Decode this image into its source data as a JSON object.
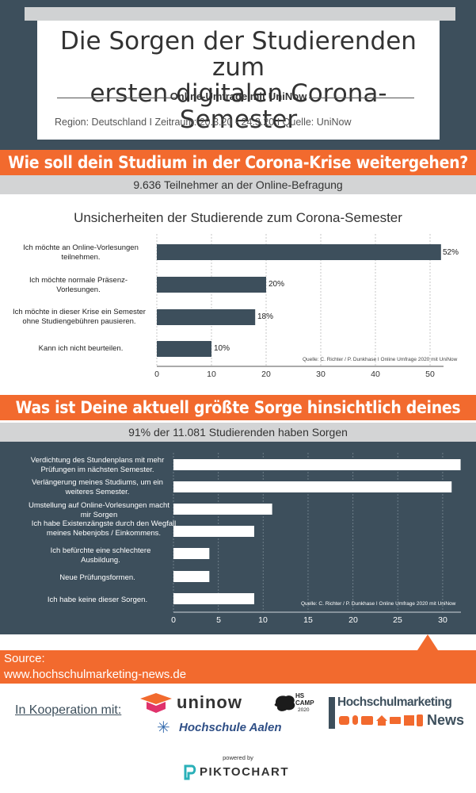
{
  "header": {
    "title_line1": "Die Sorgen der Studierenden zum",
    "title_line2": "ersten digitalen Corona-Semester",
    "subtitle": "Online-Umfrage mit UniNow",
    "meta": "Region: Deutschland I  Zeitraum: 20.3.20 - 24.3.20  I  Quelle: UniNow"
  },
  "section1": {
    "banner": "Wie soll dein Studium in der Corona-Krise weitergehen?",
    "participants": "9.636 Teilnehmer an der Online-Befragung"
  },
  "section2": {
    "banner": "Was ist Deine aktuell größte Sorge hinsichtlich deines Studiums?",
    "participants": "91% der 11.081 Studierenden haben Sorgen"
  },
  "chart_data": [
    {
      "type": "bar",
      "orientation": "horizontal",
      "title": "Unsicherheiten der Studierende zum Corona-Semester",
      "categories": [
        "Ich möchte an Online-Vorlesungen teilnehmen.",
        "Ich möchte normale Präsenz-Vorlesungen.",
        "Ich möchte in dieser Krise ein Semester ohne Studiengebühren pausieren.",
        "Kann ich nicht beurteilen."
      ],
      "values": [
        52,
        20,
        18,
        10
      ],
      "data_labels": [
        "52%",
        "20%",
        "18%",
        "10%"
      ],
      "xlim": [
        0,
        55
      ],
      "xticks": [
        0,
        10,
        20,
        30,
        40,
        50
      ],
      "grid": true,
      "credit": "Quelle: C. Richter / P. Dunkhase I Online Umfrage 2020 mit UniNow",
      "colors": {
        "bar": "#3d4f5c",
        "background": "#ffffff"
      }
    },
    {
      "type": "bar",
      "orientation": "horizontal",
      "categories": [
        "Verdichtung des Stundenplans mit mehr Prüfungen im nächsten Semester.",
        "Verlängerung meines Studiums, um ein weiteres Semester.",
        "Umstellung auf Online-Vorlesungen macht mir Sorgen",
        "Ich habe Existenzängste durch den Wegfall meines Nebenjobs / Einkommens.",
        "Ich befürchte eine schlechtere Ausbildung.",
        "Neue Prüfungsformen.",
        "Ich habe keine dieser Sorgen."
      ],
      "values": [
        32,
        31,
        11,
        9,
        4,
        4,
        9
      ],
      "xlim": [
        0,
        32.5
      ],
      "xticks": [
        0,
        5,
        10,
        15,
        20,
        25,
        30
      ],
      "grid": true,
      "credit": "Quelle: C. Richter / P. Dunkhase I Online Umfrage 2020 mit UniNow",
      "colors": {
        "bar": "#ffffff",
        "background": "#3d4f5c"
      }
    }
  ],
  "footer": {
    "source_label": "Source:",
    "source_url": "www.hochschulmarketing-news.de",
    "cooperation": "In Kooperation mit:",
    "uninow": "uninow",
    "hscamp_1": "HS",
    "hscamp_2": "CAMP",
    "hscamp_3": "2020",
    "aalen": "Hochschule Aalen",
    "hm_line1": "Hochschulmarketing",
    "hm_line2": "News",
    "powered": "powered by",
    "piktochart": "PIKTOCHART"
  },
  "colors": {
    "orange": "#f26a2e",
    "slate": "#3d4f5c",
    "grey": "#d3d4d5"
  }
}
